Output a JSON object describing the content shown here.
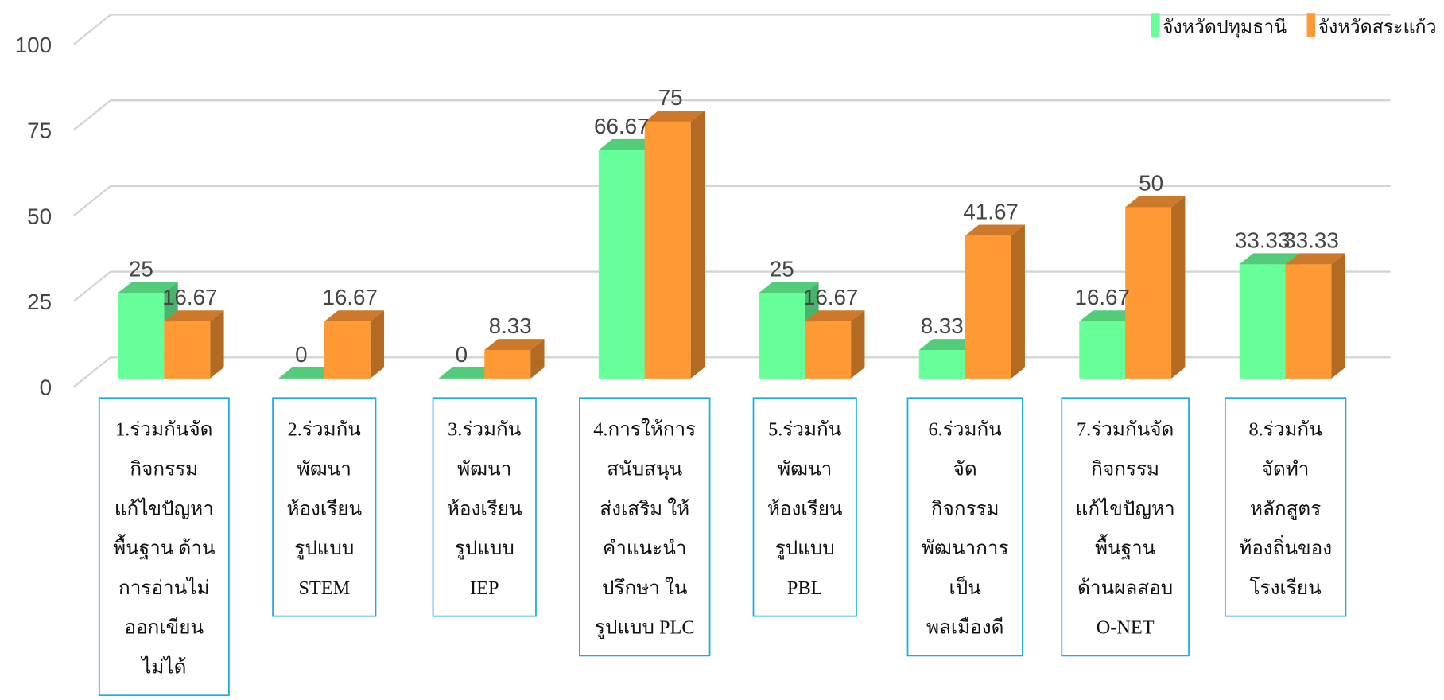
{
  "chart_data": {
    "type": "bar3d",
    "categories": [
      [
        "1.ร่วมกันจัด",
        "กิจกรรม",
        "แก้ไขปัญหา",
        "พื้นฐาน ด้าน",
        "การอ่านไม่",
        "ออกเขียน",
        "ไม่ได้"
      ],
      [
        "2.ร่วมกัน",
        "พัฒนา",
        "ห้องเรียน",
        "รูปแบบ",
        "STEM"
      ],
      [
        "3.ร่วมกัน",
        "พัฒนา",
        "ห้องเรียน",
        "รูปแบบ",
        "IEP"
      ],
      [
        "4.การให้การ",
        "สนับสนุน",
        "ส่งเสริม ให้",
        "คำแนะนำ",
        "ปรึกษา ใน",
        "รูปแบบ PLC"
      ],
      [
        "5.ร่วมกัน",
        "พัฒนา",
        "ห้องเรียน",
        "รูปแบบ",
        "PBL"
      ],
      [
        "6.ร่วมกัน",
        "จัด",
        "กิจกรรม",
        "พัฒนาการ",
        "เป็น",
        "พลเมืองดี"
      ],
      [
        "7.ร่วมกันจัด",
        "กิจกรรม",
        "แก้ไขปัญหา",
        "พื้นฐาน",
        "ด้านผลสอบ",
        "O-NET"
      ],
      [
        "8.ร่วมกัน",
        "จัดทำ",
        "หลักสูตร",
        "ท้องถิ่นของ",
        "โรงเรียน"
      ]
    ],
    "series": [
      {
        "name": "จังหวัดปทุมธานี",
        "color": "#66ff99",
        "values": [
          25,
          0,
          0,
          66.67,
          25,
          8.33,
          16.67,
          33.33
        ]
      },
      {
        "name": "จังหวัดสระแก้ว",
        "color": "#ff9933",
        "values": [
          16.67,
          16.67,
          8.33,
          75,
          16.67,
          41.67,
          50,
          33.33
        ]
      }
    ],
    "ylim": [
      0,
      100
    ],
    "yticks": [
      0,
      25,
      50,
      75,
      100
    ],
    "grid": true,
    "legend": "top-right"
  }
}
